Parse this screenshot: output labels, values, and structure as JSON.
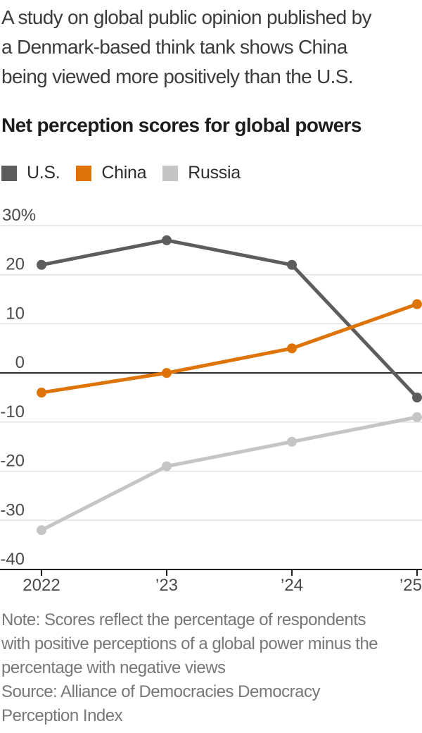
{
  "intro_lines": [
    "A study on global public opinion published by",
    "a Denmark-based think tank shows China",
    "being viewed more positively than the U.S."
  ],
  "chart_data": {
    "type": "line",
    "title": "Net perception scores for global powers",
    "categories": [
      "2022",
      "’23",
      "’24",
      "’25"
    ],
    "series": [
      {
        "name": "U.S.",
        "color": "#5d5d5d",
        "values": [
          22,
          27,
          22,
          -5
        ]
      },
      {
        "name": "China",
        "color": "#de7307",
        "values": [
          -4,
          0,
          5,
          14
        ]
      },
      {
        "name": "Russia",
        "color": "#c5c5c5",
        "values": [
          -32,
          -19,
          -14,
          -9
        ]
      }
    ],
    "ylim": [
      -40,
      30
    ],
    "yticks": [
      30,
      20,
      10,
      0,
      -10,
      -20,
      -30,
      -40
    ],
    "ytick_labels": [
      "30%",
      "20",
      "10",
      "0",
      "-10",
      "-20",
      "-30",
      "-40"
    ],
    "grid": "horizontal",
    "legend_position": "top",
    "zero_line": true
  },
  "colors": {
    "gridline": "#e3e3e3",
    "axis": "#1d1d1d",
    "tick_text": "#4b4b4b"
  },
  "note_lines": [
    "Note: Scores reflect the percentage of respondents",
    "with positive perceptions of a global power minus the",
    "percentage with negative views"
  ],
  "source_lines": [
    "Source: Alliance of Democracies Democracy",
    "Perception Index"
  ]
}
